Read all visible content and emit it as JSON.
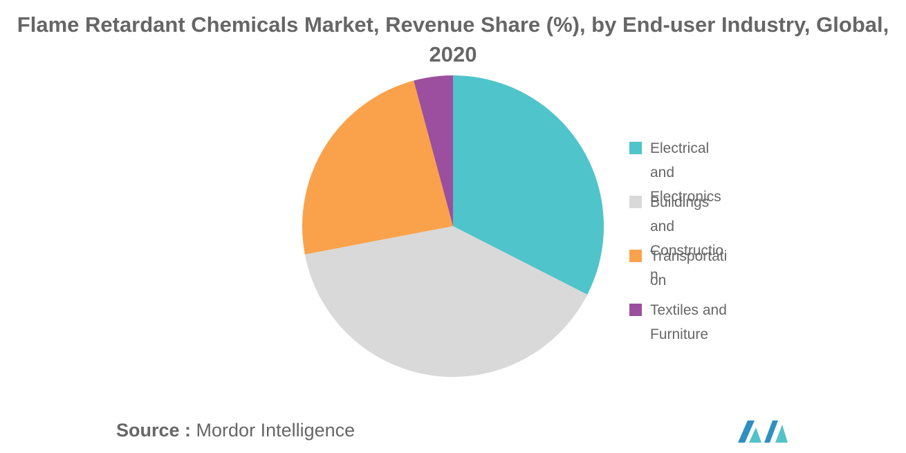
{
  "chart_data": {
    "type": "pie",
    "title": "Flame Retardant Chemicals Market, Revenue Share (%), by End-user Industry, Global, 2020",
    "slices": [
      {
        "label": "Electrical and Electronics",
        "value": 32.5,
        "color": "#4FC4CA"
      },
      {
        "label": "Buildings and Construction",
        "value": 39.5,
        "color": "#D9D9D9"
      },
      {
        "label": "Transportation",
        "value": 23.8,
        "color": "#FAA24B"
      },
      {
        "label": "Textiles and Furniture",
        "value": 4.2,
        "color": "#9B4F9E"
      }
    ],
    "legend_position": "right"
  },
  "source": {
    "prefix": "Source :",
    "name": "Mordor Intelligence"
  },
  "logo": {
    "icon": "mordor-intelligence-logo-icon",
    "colors": [
      "#2E8FC0",
      "#53C3C8"
    ]
  }
}
